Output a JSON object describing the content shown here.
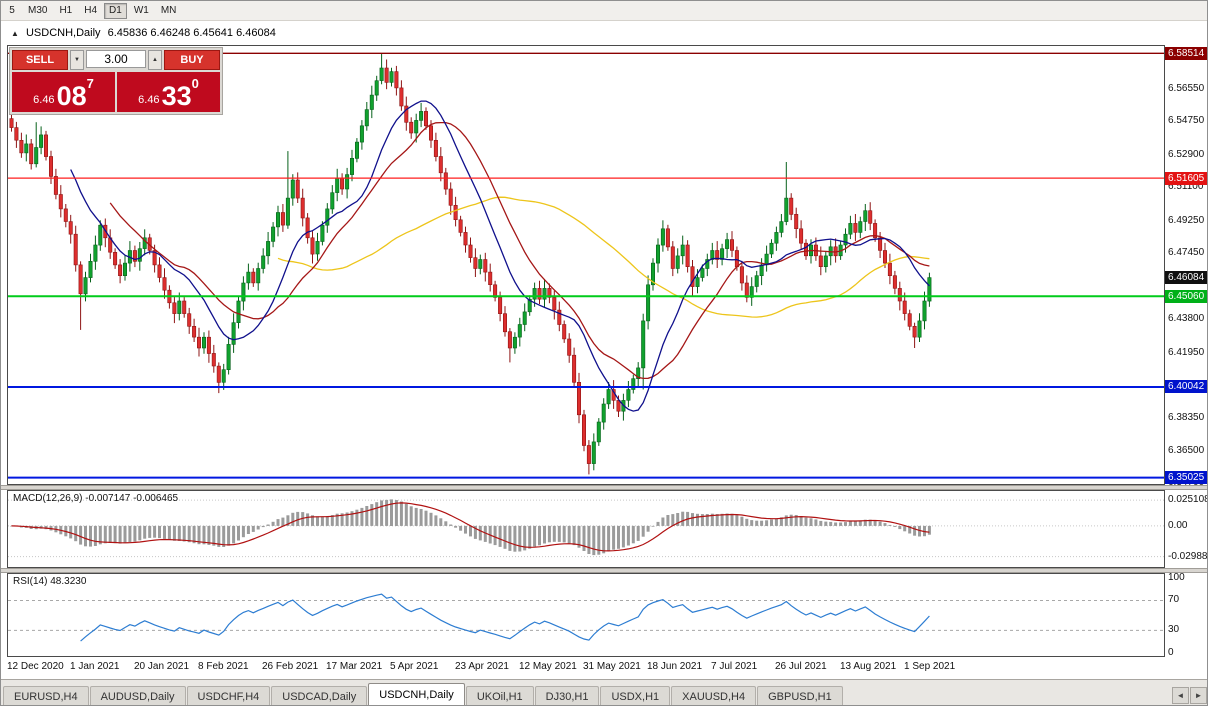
{
  "toolbar": {
    "timeframes": [
      {
        "label": "5",
        "active": false
      },
      {
        "label": "M30",
        "active": false
      },
      {
        "label": "H1",
        "active": false
      },
      {
        "label": "H4",
        "active": false
      },
      {
        "label": "D1",
        "active": true
      },
      {
        "label": "W1",
        "active": false
      },
      {
        "label": "MN",
        "active": false
      }
    ]
  },
  "chart_header": {
    "collapse": "▲",
    "title": "USDCNH,Daily",
    "quotes": "6.45836 6.46248 6.45641 6.46084"
  },
  "icons": {
    "spin_down": "▼",
    "spin_up": "▲",
    "tab_left": "◄",
    "tab_right": "►"
  },
  "trade_panel": {
    "sell_label": "SELL",
    "buy_label": "BUY",
    "volume": "3.00",
    "sell_price": {
      "prefix": "6.46",
      "big": "08",
      "sup": "7"
    },
    "buy_price": {
      "prefix": "6.46",
      "big": "33",
      "sup": "0"
    }
  },
  "price_scale": {
    "ticks": [
      {
        "price": 6.5655,
        "label": "6.56550"
      },
      {
        "price": 6.5475,
        "label": "6.54750"
      },
      {
        "price": 6.529,
        "label": "6.52900"
      },
      {
        "price": 6.511,
        "label": "6.51100"
      },
      {
        "price": 6.4925,
        "label": "6.49250"
      },
      {
        "price": 6.4745,
        "label": "6.47450"
      },
      {
        "price": 6.438,
        "label": "6.43800"
      },
      {
        "price": 6.4195,
        "label": "6.41950"
      },
      {
        "price": 6.3835,
        "label": "6.38350"
      },
      {
        "price": 6.365,
        "label": "6.36500"
      },
      {
        "price": 6.347,
        "label": "6.34700"
      }
    ],
    "line_labels": [
      {
        "price": 6.58514,
        "label": "6.58514",
        "bg": "#8b0000"
      },
      {
        "price": 6.51605,
        "label": "6.51605",
        "bg": "#e31212"
      },
      {
        "price": 6.46084,
        "label": "6.46084",
        "bg": "#101010"
      },
      {
        "price": 6.4506,
        "label": "6.45060",
        "bg": "#00b018"
      },
      {
        "price": 6.40042,
        "label": "6.40042",
        "bg": "#0013cc"
      },
      {
        "price": 6.35025,
        "label": "6.35025",
        "bg": "#0013cc"
      }
    ]
  },
  "chart_data": {
    "type": "candlestick",
    "symbol": "USDCNH",
    "timeframe": "Daily",
    "last_quote": {
      "open": 6.45836,
      "high": 6.46248,
      "low": 6.45641,
      "close": 6.46084
    },
    "price_axis": {
      "top": 6.5892,
      "bottom": 6.3467
    },
    "first_open": 6.549,
    "closes": [
      6.544,
      6.537,
      6.53,
      6.535,
      6.524,
      6.533,
      6.54,
      6.528,
      6.517,
      6.507,
      6.499,
      6.492,
      6.485,
      6.468,
      6.452,
      6.461,
      6.47,
      6.479,
      6.49,
      6.483,
      6.475,
      6.468,
      6.462,
      6.469,
      6.476,
      6.47,
      6.477,
      6.483,
      6.476,
      6.468,
      6.461,
      6.454,
      6.447,
      6.441,
      6.448,
      6.441,
      6.434,
      6.428,
      6.422,
      6.428,
      6.419,
      6.412,
      6.403,
      6.41,
      6.424,
      6.436,
      6.448,
      6.458,
      6.464,
      6.458,
      6.466,
      6.473,
      6.481,
      6.489,
      6.497,
      6.49,
      6.505,
      6.515,
      6.505,
      6.494,
      6.483,
      6.474,
      6.481,
      6.49,
      6.499,
      6.508,
      6.516,
      6.51,
      6.518,
      6.527,
      6.536,
      6.545,
      6.554,
      6.562,
      6.57,
      6.577,
      6.569,
      6.575,
      6.566,
      6.556,
      6.547,
      6.541,
      6.548,
      6.553,
      6.545,
      6.537,
      6.528,
      6.519,
      6.51,
      6.501,
      6.493,
      6.486,
      6.479,
      6.472,
      6.466,
      6.471,
      6.464,
      6.457,
      6.45,
      6.441,
      6.431,
      6.422,
      6.428,
      6.435,
      6.442,
      6.449,
      6.455,
      6.449,
      6.455,
      6.45,
      6.443,
      6.435,
      6.427,
      6.418,
      6.403,
      6.385,
      6.368,
      6.358,
      6.37,
      6.381,
      6.391,
      6.399,
      6.393,
      6.387,
      6.393,
      6.399,
      6.405,
      6.411,
      6.437,
      6.457,
      6.469,
      6.479,
      6.488,
      6.478,
      6.466,
      6.473,
      6.479,
      6.467,
      6.456,
      6.461,
      6.466,
      6.471,
      6.476,
      6.471,
      6.477,
      6.482,
      6.476,
      6.467,
      6.458,
      6.45,
      6.456,
      6.462,
      6.468,
      6.474,
      6.48,
      6.486,
      6.492,
      6.505,
      6.496,
      6.488,
      6.48,
      6.473,
      6.479,
      6.473,
      6.467,
      6.473,
      6.478,
      6.473,
      6.479,
      6.485,
      6.491,
      6.486,
      6.492,
      6.498,
      6.491,
      6.483,
      6.476,
      6.469,
      6.462,
      6.455,
      6.448,
      6.441,
      6.434,
      6.428,
      6.437,
      6.448,
      6.461
    ],
    "wick_overrides": {
      "5": [
        0.014,
        0.002
      ],
      "14": [
        0.002,
        0.02
      ],
      "42": [
        0.002,
        0.006
      ],
      "56": [
        0.026,
        0.002
      ],
      "75": [
        0.008,
        0.002
      ],
      "101": [
        0.002,
        0.008
      ],
      "117": [
        0.003,
        0.006
      ],
      "128": [
        0.004,
        0.012
      ],
      "157": [
        0.02,
        0.002
      ],
      "183": [
        0.002,
        0.006
      ]
    },
    "candle_colors": {
      "up": "#11a12e",
      "up_stroke": "#06611a",
      "down": "#dd2e2e",
      "down_stroke": "#8e1414"
    },
    "moving_averages": [
      {
        "period": 55,
        "color": "#edc51b"
      },
      {
        "period": 21,
        "color": "#a51717"
      },
      {
        "period": 13,
        "color": "#10108c"
      }
    ],
    "hlines": [
      {
        "price": 6.58514,
        "color": "#8b0000",
        "width": 1.3
      },
      {
        "price": 6.51605,
        "color": "#ff1e1e",
        "width": 1.3
      },
      {
        "price": 6.4506,
        "color": "#00cc1a",
        "width": 2
      },
      {
        "price": 6.40042,
        "color": "#0018e0",
        "width": 2
      },
      {
        "price": 6.35025,
        "color": "#0018e0",
        "width": 2
      }
    ],
    "x_labels": [
      {
        "index": 0,
        "label": "12 Dec 2020"
      },
      {
        "index": 13,
        "label": "1 Jan 2021"
      },
      {
        "index": 26,
        "label": "20 Jan 2021"
      },
      {
        "index": 39,
        "label": "8 Feb 2021"
      },
      {
        "index": 52,
        "label": "26 Feb 2021"
      },
      {
        "index": 65,
        "label": "17 Mar 2021"
      },
      {
        "index": 78,
        "label": "5 Apr 2021"
      },
      {
        "index": 91,
        "label": "23 Apr 2021"
      },
      {
        "index": 104,
        "label": "12 May 2021"
      },
      {
        "index": 117,
        "label": "31 May 2021"
      },
      {
        "index": 130,
        "label": "18 Jun 2021"
      },
      {
        "index": 143,
        "label": "7 Jul 2021"
      },
      {
        "index": 156,
        "label": "26 Jul 2021"
      },
      {
        "index": 169,
        "label": "13 Aug 2021"
      },
      {
        "index": 182,
        "label": "1 Sep 2021"
      }
    ],
    "indicators": {
      "macd": {
        "fast": 12,
        "slow": 26,
        "signal": 9,
        "label": "MACD(12,26,9) -0.007147 -0.006465",
        "values_text": [
          "-0.007147",
          "-0.006465"
        ],
        "scale": [
          {
            "value": 0.025108,
            "label": "0.025108"
          },
          {
            "value": 0,
            "label": "0.00"
          },
          {
            "value": -0.029883,
            "label": "-0.029883"
          }
        ],
        "range": {
          "top": 0.034,
          "bottom": -0.04
        },
        "histogram_color": "#9b9b9b",
        "signal_color": "#b11212"
      },
      "rsi": {
        "period": 14,
        "label": "RSI(14) 48.3230",
        "value_text": "48.3230",
        "scale": [
          {
            "value": 100,
            "label": "100"
          },
          {
            "value": 70,
            "label": "70"
          },
          {
            "value": 30,
            "label": "30"
          },
          {
            "value": 0,
            "label": "0"
          }
        ],
        "levels": [
          70,
          30
        ],
        "range": {
          "top": 105.4,
          "bottom": -4.3
        },
        "color": "#2d7dd2"
      }
    }
  },
  "tabs": [
    {
      "label": "EURUSD,H4",
      "active": false
    },
    {
      "label": "AUDUSD,Daily",
      "active": false
    },
    {
      "label": "USDCHF,H4",
      "active": false
    },
    {
      "label": "USDCAD,Daily",
      "active": false
    },
    {
      "label": "USDCNH,Daily",
      "active": true
    },
    {
      "label": "UKOil,H1",
      "active": false
    },
    {
      "label": "DJ30,H1",
      "active": false
    },
    {
      "label": "USDX,H1",
      "active": false
    },
    {
      "label": "XAUUSD,H4",
      "active": false
    },
    {
      "label": "GBPUSD,H1",
      "active": false
    }
  ]
}
